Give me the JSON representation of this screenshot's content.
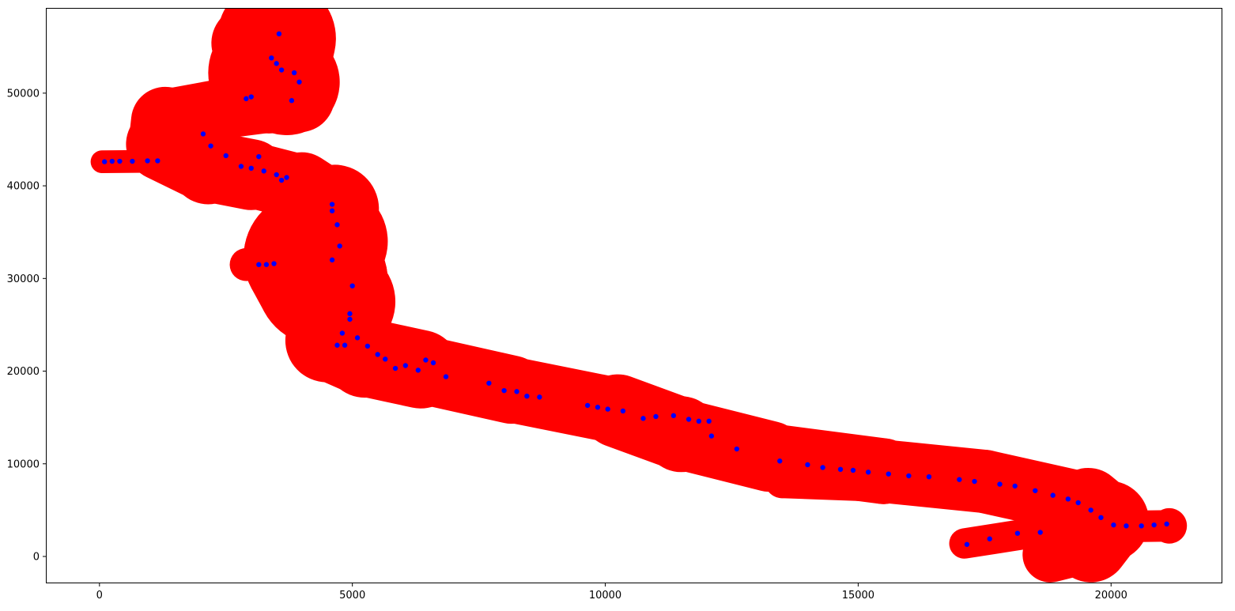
{
  "chart_data": {
    "type": "scatter",
    "title": "",
    "xlabel": "",
    "ylabel": "",
    "xlim": [
      -1060,
      22200
    ],
    "ylim": [
      -2900,
      59200
    ],
    "x_ticks": [
      0,
      5000,
      10000,
      15000,
      20000
    ],
    "x_tick_labels": [
      "0",
      "5000",
      "10000",
      "15000",
      "20000"
    ],
    "y_ticks": [
      0,
      10000,
      20000,
      30000,
      40000,
      50000
    ],
    "y_tick_labels": [
      "0",
      "10000",
      "20000",
      "30000",
      "40000",
      "50000"
    ],
    "grid": false,
    "legend": "none",
    "colors": {
      "cloud": "#ff0000",
      "points": "#0000ff",
      "frame": "#000000"
    },
    "series": [
      {
        "color": "#ff0000",
        "marker": "dense band of overlapping circles",
        "segments": [
          {
            "x": [
              2950,
              3500,
              3350,
              3700,
              3950,
              3300,
              2300,
              1300,
              1250,
              2150,
              3000,
              4000,
              4650,
              4550,
              4150,
              4400,
              4750,
              4500,
              5250,
              6350,
              8150,
              10250,
              11500,
              13250,
              15500,
              17500,
              19550,
              19950,
              19600,
              18800
            ],
            "y": [
              55400,
              55900,
              52200,
              51200,
              49600,
              48700,
              48000,
              47000,
              44500,
              42100,
              41200,
              39800,
              37500,
              34000,
              32300,
              29800,
              27500,
              23300,
              21500,
              20200,
              18000,
              15700,
              13200,
              10800,
              9200,
              8100,
              5600,
              3800,
              1300,
              200
            ],
            "width": [
              650,
              2300,
              2400,
              1800,
              1000,
              1000,
              1200,
              1300,
              1400,
              1500,
              1300,
              1300,
              1500,
              2000,
              2600,
              2600,
              1800,
              1500,
              1600,
              1500,
              1200,
              1400,
              1500,
              1300,
              1300,
              1200,
              1300,
              1600,
              1400,
              800
            ]
          },
          {
            "x": [
              50,
              1200,
              2300
            ],
            "y": [
              42600,
              42650,
              42700
            ],
            "width": [
              400,
              500,
              500
            ]
          },
          {
            "x": [
              2350,
              3200
            ],
            "y": [
              43250,
              43150
            ],
            "width": [
              350,
              350
            ]
          },
          {
            "x": [
              2900,
              3600,
              4200
            ],
            "y": [
              31500,
              32300,
              31800
            ],
            "width": [
              500,
              800,
              700
            ]
          },
          {
            "x": [
              11000,
              12150
            ],
            "y": [
              15150,
              14700
            ],
            "width": [
              500,
              500
            ]
          },
          {
            "x": [
              13500,
              16000
            ],
            "y": [
              8200,
              7700
            ],
            "width": [
              700,
              700
            ]
          },
          {
            "x": [
              17100,
              18500,
              19400
            ],
            "y": [
              1400,
              2600,
              2800
            ],
            "width": [
              500,
              700,
              800
            ]
          },
          {
            "x": [
              19800,
              21150
            ],
            "y": [
              3200,
              3300
            ],
            "width": [
              550,
              700
            ]
          }
        ]
      },
      {
        "color": "#0000ff",
        "marker": "o",
        "x": [
          3550,
          3400,
          3500,
          3600,
          3850,
          3950,
          3800,
          2900,
          3000,
          2050,
          2200,
          2500,
          3150,
          2800,
          3000,
          3250,
          3500,
          3700,
          3600,
          100,
          250,
          400,
          650,
          950,
          1150,
          4600,
          4600,
          4700,
          4750,
          4600,
          3150,
          3300,
          3450,
          5000,
          4950,
          4950,
          4800,
          5100,
          5300,
          4850,
          4700,
          5500,
          5650,
          5850,
          6050,
          6300,
          6450,
          6600,
          6850,
          7700,
          8000,
          8250,
          8450,
          8700,
          9650,
          9850,
          10050,
          10350,
          10750,
          11000,
          11350,
          11650,
          11850,
          12050,
          12100,
          12600,
          13450,
          14000,
          14300,
          14650,
          14900,
          15200,
          15600,
          16000,
          16400,
          17000,
          17300,
          17800,
          18100,
          18500,
          18850,
          19150,
          19350,
          19600,
          19800,
          20050,
          20300,
          20600,
          20850,
          21100,
          17600,
          17150,
          18150,
          18600
        ],
        "y": [
          56400,
          53800,
          53200,
          52500,
          52200,
          51200,
          49200,
          49400,
          49600,
          45600,
          44300,
          43250,
          43150,
          42100,
          41900,
          41600,
          41200,
          40900,
          40600,
          42600,
          42650,
          42650,
          42650,
          42700,
          42700,
          38000,
          37300,
          35800,
          33500,
          32000,
          31500,
          31500,
          31600,
          29200,
          26200,
          25600,
          24100,
          23600,
          22700,
          22800,
          22800,
          21800,
          21300,
          20300,
          20600,
          20100,
          21200,
          20900,
          19400,
          18700,
          17900,
          17800,
          17300,
          17200,
          16300,
          16100,
          15900,
          15700,
          14900,
          15100,
          15200,
          14800,
          14600,
          14600,
          13000,
          11600,
          10300,
          9900,
          9600,
          9400,
          9300,
          9100,
          8900,
          8700,
          8600,
          8300,
          8100,
          7800,
          7600,
          7100,
          6600,
          6200,
          5800,
          5000,
          4200,
          3400,
          3300,
          3300,
          3400,
          3500,
          1900,
          1300,
          2500,
          2600
        ]
      }
    ]
  }
}
